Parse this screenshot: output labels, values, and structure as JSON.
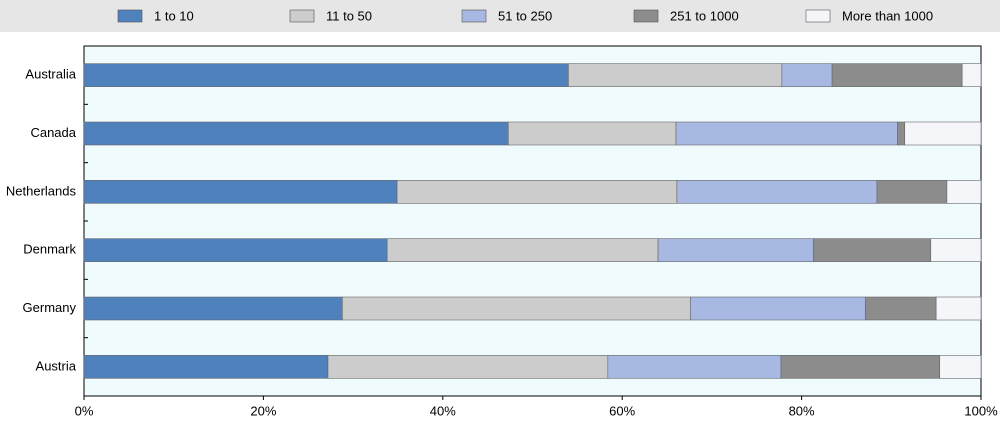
{
  "chart_data": {
    "type": "stacked-bar-horizontal",
    "categories": [
      "Australia",
      "Canada",
      "Netherlands",
      "Denmark",
      "Germany",
      "Austria"
    ],
    "series": [
      {
        "name": "1 to 10",
        "color": "#4f81bd",
        "values": [
          54.0,
          47.3,
          34.9,
          33.8,
          28.8,
          27.2
        ]
      },
      {
        "name": "11 to 50",
        "color": "#cccccc",
        "values": [
          23.8,
          18.7,
          31.2,
          30.2,
          38.8,
          31.2
        ]
      },
      {
        "name": "51 to 250",
        "color": "#a7b9e3",
        "values": [
          5.6,
          24.7,
          22.3,
          17.3,
          19.5,
          19.3
        ]
      },
      {
        "name": "251 to 1000",
        "color": "#8c8c8c",
        "values": [
          14.5,
          0.8,
          7.8,
          13.1,
          7.9,
          17.7
        ]
      },
      {
        "name": "More than 1000",
        "color": "#f4f6fa",
        "values": [
          2.1,
          8.5,
          3.8,
          5.6,
          5.0,
          4.6
        ]
      }
    ],
    "xlim": [
      0,
      100
    ],
    "xticks": [
      {
        "value": 0,
        "label": "0%"
      },
      {
        "value": 20,
        "label": "20%"
      },
      {
        "value": 40,
        "label": "40%"
      },
      {
        "value": 60,
        "label": "60%"
      },
      {
        "value": 80,
        "label": "80%"
      },
      {
        "value": 100,
        "label": "100%"
      }
    ],
    "grid": false
  }
}
